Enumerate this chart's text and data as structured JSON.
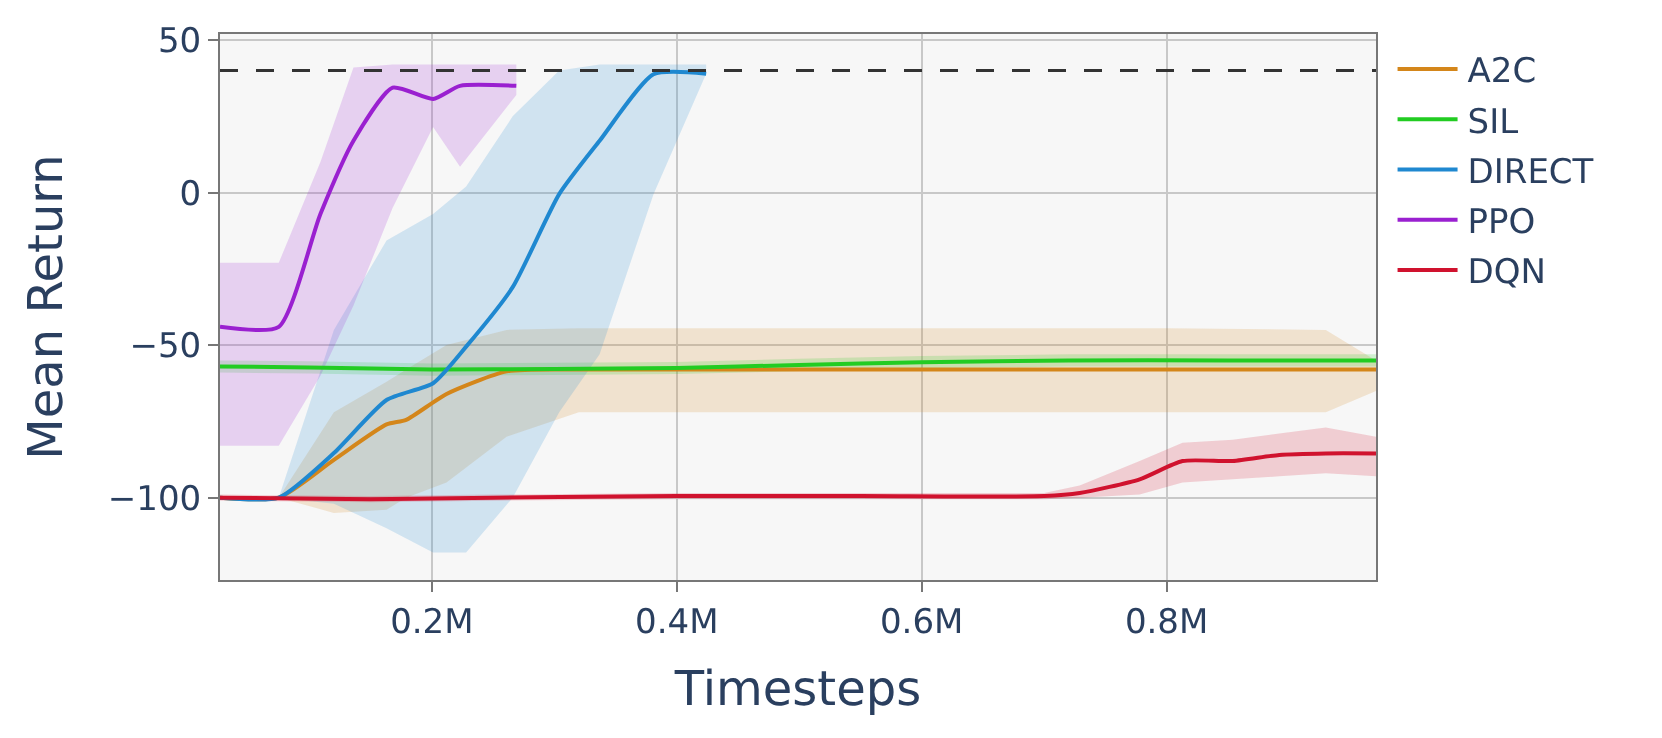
{
  "chart_data": {
    "type": "line",
    "xlabel": "Timesteps",
    "ylabel": "Mean Return",
    "xlim": [
      27000,
      971000
    ],
    "ylim": [
      -127,
      52
    ],
    "xticks": [
      {
        "value": 200000,
        "label": "0.2M"
      },
      {
        "value": 400000,
        "label": "0.4M"
      },
      {
        "value": 600000,
        "label": "0.6M"
      },
      {
        "value": 800000,
        "label": "0.8M"
      }
    ],
    "yticks": [
      -100,
      -50,
      0,
      50
    ],
    "grid": true,
    "legend": "top right",
    "marker": "none",
    "line_style": "solid",
    "ref_lines": [
      {
        "axis": "y",
        "value": 40,
        "color": "#333333",
        "line_style": "dashed"
      }
    ],
    "series": [
      {
        "name": "A2C",
        "color": "#d4861a",
        "x": [
          27000,
          75000,
          120000,
          163000,
          179000,
          212000,
          261000,
          320000,
          450000,
          600000,
          800000,
          930000,
          971000
        ],
        "values": [
          -100,
          -100,
          -87.6,
          -76,
          -74.5,
          -66,
          -58.6,
          -58,
          -58,
          -58,
          -58,
          -58,
          -58
        ],
        "lower": [
          -100,
          -100,
          -105,
          -104,
          -100,
          -95,
          -80,
          -72,
          -72,
          -72,
          -72,
          -72,
          -65
        ],
        "upper": [
          -100,
          -100,
          -72,
          -62,
          -58,
          -50,
          -45,
          -44.5,
          -44.5,
          -44.5,
          -44.5,
          -45,
          -55
        ]
      },
      {
        "name": "SIL",
        "color": "#22cc22",
        "x": [
          27000,
          100000,
          200000,
          300000,
          400000,
          500000,
          600000,
          720000,
          850000,
          971000
        ],
        "values": [
          -57,
          -57.3,
          -58,
          -57.8,
          -57.5,
          -56.5,
          -55.6,
          -55,
          -55,
          -55
        ],
        "lower": [
          -59,
          -59.3,
          -60,
          -59.8,
          -59.5,
          -58.5,
          -57.6,
          -57,
          -57,
          -57
        ],
        "upper": [
          -55,
          -55.3,
          -56,
          -55.8,
          -55.5,
          -54.5,
          -53.6,
          -53,
          -53,
          -53
        ]
      },
      {
        "name": "DIRECT",
        "color": "#1f88d0",
        "x": [
          27000,
          75000,
          120000,
          163000,
          201000,
          228000,
          266000,
          304000,
          337000,
          381000,
          424000
        ],
        "values": [
          -100,
          -100,
          -85.4,
          -68,
          -62.5,
          -50.5,
          -31,
          -0.5,
          17,
          38.8,
          39
        ],
        "lower": [
          -100,
          -100,
          -102,
          -110,
          -118,
          -118,
          -100,
          -72,
          -53,
          -0.5,
          39
        ],
        "upper": [
          -100,
          -100,
          -45,
          -15.7,
          -7,
          2,
          25,
          40,
          42,
          42,
          42
        ]
      },
      {
        "name": "PPO",
        "color": "#9a20d0",
        "x": [
          27000,
          75000,
          109000,
          136000,
          168000,
          201000,
          223000,
          269000
        ],
        "values": [
          -44,
          -44,
          -7,
          17,
          34.4,
          30.7,
          35,
          35
        ],
        "lower": [
          -83,
          -83,
          -60,
          -37,
          -5,
          21.5,
          8.5,
          32
        ],
        "upper": [
          -23,
          -23,
          10,
          41,
          42,
          42,
          42,
          42
        ]
      },
      {
        "name": "DQN",
        "color": "#d0122e",
        "x": [
          27000,
          150000,
          250000,
          400000,
          550000,
          700000,
          729000,
          778000,
          813000,
          854000,
          892000,
          930000,
          971000
        ],
        "values": [
          -100,
          -100.5,
          -100,
          -99.5,
          -99.5,
          -99.5,
          -98.5,
          -94,
          -88,
          -88,
          -86,
          -85.5,
          -85.5
        ],
        "lower": [
          -101,
          -101.5,
          -101,
          -100.5,
          -100.5,
          -100.5,
          -100,
          -99,
          -95,
          -94,
          -93,
          -92,
          -93
        ],
        "upper": [
          -99,
          -99.5,
          -99,
          -98.5,
          -98.5,
          -98.5,
          -96,
          -88,
          -82,
          -81,
          -79,
          -77,
          -80
        ]
      }
    ]
  }
}
